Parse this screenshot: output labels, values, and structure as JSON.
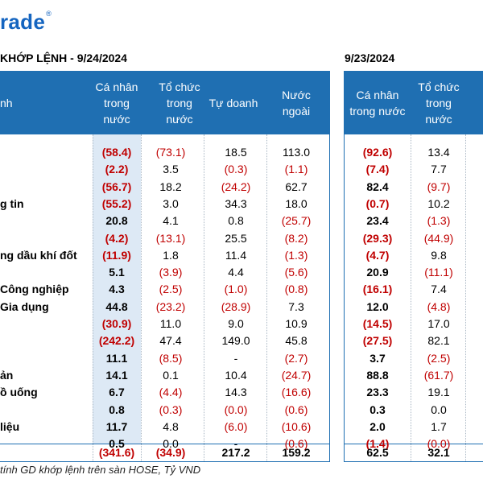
{
  "logo": {
    "text": "rade",
    "mark": "®"
  },
  "title_left": "KHỚP LỆNH - 9/24/2024",
  "title_right": "9/23/2024",
  "headers_left": [
    "nh",
    "Cá nhân\ntrong\nnước",
    "Tổ chức\ntrong\nnước",
    "Tự doanh",
    "Nước\nngoài"
  ],
  "headers_right": [
    "Cá nhân\ntrong nước",
    "Tổ chức\ntrong\nnước"
  ],
  "rows": [
    {
      "sector": "",
      "v": [
        "(58.4)",
        "(73.1)",
        "18.5",
        "113.0"
      ],
      "p": [
        "(92.6)",
        "13.4"
      ]
    },
    {
      "sector": "",
      "v": [
        "(2.2)",
        "3.5",
        "(0.3)",
        "(1.1)"
      ],
      "p": [
        "(7.4)",
        "7.7"
      ]
    },
    {
      "sector": "",
      "v": [
        "(56.7)",
        "18.2",
        "(24.2)",
        "62.7"
      ],
      "p": [
        "82.4",
        "(9.7)"
      ]
    },
    {
      "sector": "g tin",
      "v": [
        "(55.2)",
        "3.0",
        "34.3",
        "18.0"
      ],
      "p": [
        "(0.7)",
        "10.2"
      ]
    },
    {
      "sector": "",
      "v": [
        "20.8",
        "4.1",
        "0.8",
        "(25.7)"
      ],
      "p": [
        "23.4",
        "(1.3)"
      ]
    },
    {
      "sector": "",
      "v": [
        "(4.2)",
        "(13.1)",
        "25.5",
        "(8.2)"
      ],
      "p": [
        "(29.3)",
        "(44.9)"
      ]
    },
    {
      "sector": "ng dầu khí đốt",
      "v": [
        "(11.9)",
        "1.8",
        "11.4",
        "(1.3)"
      ],
      "p": [
        "(4.7)",
        "9.8"
      ]
    },
    {
      "sector": "",
      "v": [
        "5.1",
        "(3.9)",
        "4.4",
        "(5.6)"
      ],
      "p": [
        "20.9",
        "(11.1)"
      ]
    },
    {
      "sector": "Công nghiệp",
      "v": [
        "4.3",
        "(2.5)",
        "(1.0)",
        "(0.8)"
      ],
      "p": [
        "(16.1)",
        "7.4"
      ]
    },
    {
      "sector": "Gia dụng",
      "v": [
        "44.8",
        "(23.2)",
        "(28.9)",
        "7.3"
      ],
      "p": [
        "12.0",
        "(4.8)"
      ]
    },
    {
      "sector": "",
      "v": [
        "(30.9)",
        "11.0",
        "9.0",
        "10.9"
      ],
      "p": [
        "(14.5)",
        "17.0"
      ]
    },
    {
      "sector": "",
      "v": [
        "(242.2)",
        "47.4",
        "149.0",
        "45.8"
      ],
      "p": [
        "(27.5)",
        "82.1"
      ]
    },
    {
      "sector": "",
      "v": [
        "11.1",
        "(8.5)",
        "-",
        "(2.7)"
      ],
      "p": [
        "3.7",
        "(2.5)"
      ]
    },
    {
      "sector": "ản",
      "v": [
        "14.1",
        "0.1",
        "10.4",
        "(24.7)"
      ],
      "p": [
        "88.8",
        "(61.7)"
      ]
    },
    {
      "sector": "ồ uống",
      "v": [
        "6.7",
        "(4.4)",
        "14.3",
        "(16.6)"
      ],
      "p": [
        "23.3",
        "19.1"
      ]
    },
    {
      "sector": "",
      "v": [
        "0.8",
        "(0.3)",
        "(0.0)",
        "(0.6)"
      ],
      "p": [
        "0.3",
        "0.0"
      ]
    },
    {
      "sector": "liệu",
      "v": [
        "11.7",
        "4.8",
        "(6.0)",
        "(10.6)"
      ],
      "p": [
        "2.0",
        "1.7"
      ]
    },
    {
      "sector": "",
      "v": [
        "0.5",
        "0.0",
        "-",
        "(0.6)"
      ],
      "p": [
        "(1.4)",
        "(0.0)"
      ]
    }
  ],
  "total": {
    "v": [
      "(341.6)",
      "(34.9)",
      "217.2",
      "159.2"
    ],
    "p": [
      "62.5",
      "32.1"
    ]
  },
  "note": "tính GD khớp lệnh trên sàn HOSE, Tỷ VND",
  "colors": {
    "header_bg": "#1f6fb2",
    "negative": "#c00000",
    "shade": "#dde9f5",
    "logo": "#1565c0"
  }
}
